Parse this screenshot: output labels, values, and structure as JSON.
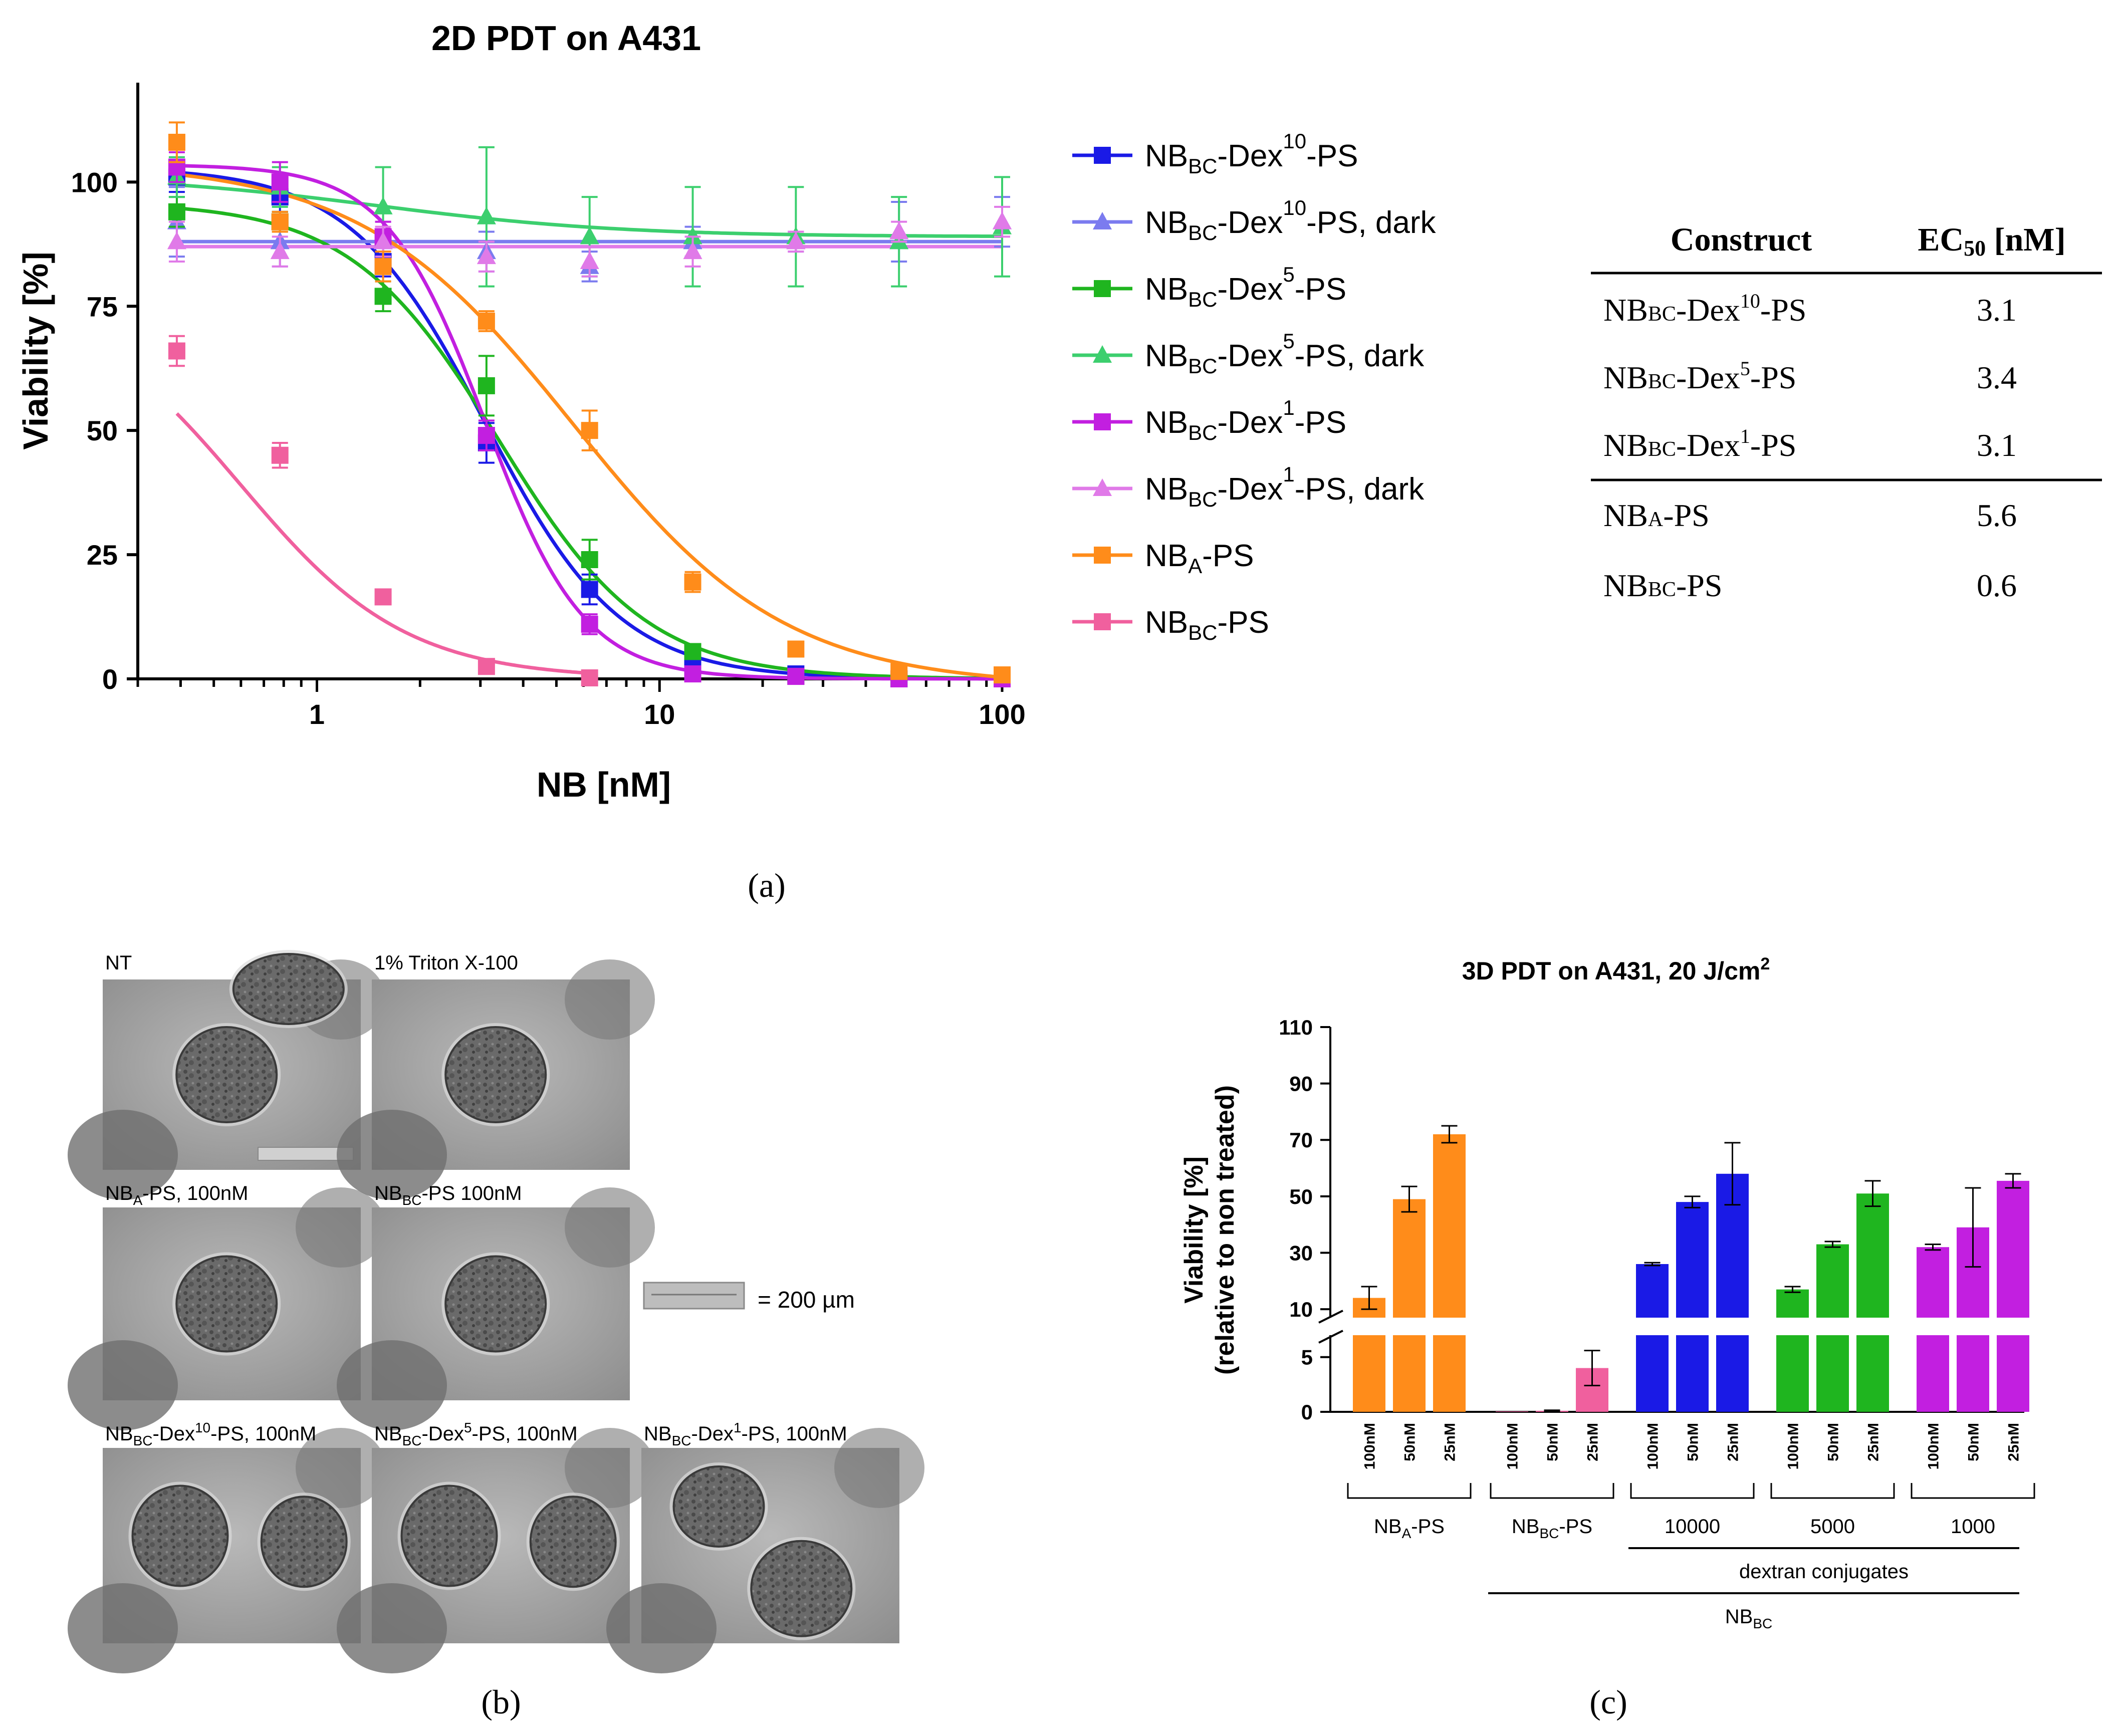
{
  "colors": {
    "blue": "#1a1ae6",
    "lavender": "#7b7bef",
    "green": "#1fb51f",
    "mint": "#3ccf6e",
    "purple": "#c21fe0",
    "violet": "#e07ae8",
    "orange": "#ff8c1a",
    "pink": "#f0609e",
    "axis": "#000000"
  },
  "panel_labels": {
    "a": "(a)",
    "b": "(b)",
    "c": "(c)"
  },
  "ec50_table": {
    "headers": [
      "Construct",
      "EC50 [nM]"
    ],
    "rows": [
      {
        "name": "NBBC-Dex10-PS",
        "base": "NB",
        "sub": "BC",
        "mid": "-Dex",
        "sup": "10",
        "tail": "-PS",
        "value": "3.1"
      },
      {
        "name": "NBBC-Dex5-PS",
        "base": "NB",
        "sub": "BC",
        "mid": "-Dex",
        "sup": "5",
        "tail": "-PS",
        "value": "3.4"
      },
      {
        "name": "NBBC-Dex1-PS",
        "base": "NB",
        "sub": "BC",
        "mid": "-Dex",
        "sup": "1",
        "tail": "-PS",
        "value": "3.1"
      },
      {
        "name": "NBA-PS",
        "base": "NB",
        "sub": "A",
        "mid": "-PS",
        "sup": "",
        "tail": "",
        "value": "5.6"
      },
      {
        "name": "NBBC-PS",
        "base": "NB",
        "sub": "BC",
        "mid": "-PS",
        "sup": "",
        "tail": "",
        "value": "0.6"
      }
    ]
  },
  "microscopy": {
    "scale_text": "= 200 µm",
    "images": [
      {
        "label": "NT"
      },
      {
        "label": "1% Triton X-100"
      },
      {
        "label": "NBA-PS, 100nM",
        "base": "NB",
        "sub": "A",
        "tail": "-PS, 100nM"
      },
      {
        "label": "NBBC-PS 100nM",
        "base": "NB",
        "sub": "BC",
        "tail": "-PS 100nM"
      },
      {
        "label": "NBBC-Dex10-PS, 100nM",
        "base": "NB",
        "sub": "BC",
        "mid": "-Dex",
        "sup": "10",
        "tail": "-PS, 100nM"
      },
      {
        "label": "NBBC-Dex5-PS, 100nM",
        "base": "NB",
        "sub": "BC",
        "mid": "-Dex",
        "sup": "5",
        "tail": "-PS, 100nM"
      },
      {
        "label": "NBBC-Dex1-PS, 100nM",
        "base": "NB",
        "sub": "BC",
        "mid": "-Dex",
        "sup": "1",
        "tail": "-PS, 100nM"
      }
    ]
  },
  "chart_data": [
    {
      "id": "a",
      "type": "scatter",
      "title": "2D PDT on A431",
      "xlabel": "NB [nM]",
      "ylabel": "Viability [%]",
      "xscale": "log",
      "xlim": [
        0.3,
        100
      ],
      "ylim": [
        0,
        120
      ],
      "xticks": [
        "1",
        "10",
        "100"
      ],
      "yticks": [
        "0",
        "25",
        "50",
        "75",
        "100"
      ],
      "legend_position": "right",
      "x": [
        0.39,
        0.78,
        1.56,
        3.125,
        6.25,
        12.5,
        25,
        50,
        100
      ],
      "series": [
        {
          "key": "dex10",
          "base": "NB",
          "sub": "BC",
          "mid": "-Dex",
          "sup": "10",
          "tail": "-PS",
          "marker": "square",
          "color": "#1a1ae6",
          "values": [
            101,
            97,
            84,
            47.5,
            18,
            2.5,
            1,
            0,
            0
          ],
          "errors": [
            3,
            3,
            3,
            4,
            3,
            1,
            0.5,
            0.3,
            0.3
          ],
          "fit": {
            "top": 103,
            "bottom": 0,
            "ec50": 3.1,
            "hill": 2.2
          }
        },
        {
          "key": "dex10dark",
          "base": "NB",
          "sub": "BC",
          "mid": "-Dex",
          "sup": "10",
          "tail": "-PS, dark",
          "marker": "triangle",
          "color": "#7b7bef",
          "values": [
            92,
            88,
            88,
            86,
            83,
            88,
            88,
            90,
            92
          ],
          "errors": [
            7,
            5,
            4,
            4,
            3,
            3,
            2,
            6,
            5
          ],
          "fit": {
            "flat": 88
          }
        },
        {
          "key": "dex5",
          "base": "NB",
          "sub": "BC",
          "mid": "-Dex",
          "sup": "5",
          "tail": "-PS",
          "marker": "square",
          "color": "#1fb51f",
          "values": [
            94,
            92,
            77,
            59,
            24,
            5.5,
            0.5,
            0,
            0
          ],
          "errors": [
            3,
            2,
            3,
            6,
            4,
            1,
            0.5,
            0.3,
            0.3
          ],
          "fit": {
            "top": 96,
            "bottom": 0,
            "ec50": 3.4,
            "hill": 2.0
          }
        },
        {
          "key": "dex5dark",
          "base": "NB",
          "sub": "BC",
          "mid": "-Dex",
          "sup": "5",
          "tail": "-PS, dark",
          "marker": "triangle",
          "color": "#3ccf6e",
          "values": [
            101,
            99,
            95,
            93,
            89,
            89,
            89,
            88,
            91
          ],
          "errors": [
            4,
            4,
            8,
            14,
            8,
            10,
            10,
            9,
            10
          ],
          "fit": {
            "top": 101.5,
            "bottom": 89,
            "ec50": 1.5,
            "hill": 1.2
          }
        },
        {
          "key": "dex1",
          "base": "NB",
          "sub": "BC",
          "mid": "-Dex",
          "sup": "1",
          "tail": "-PS",
          "marker": "square",
          "color": "#c21fe0",
          "values": [
            103,
            100,
            89,
            49,
            11,
            1,
            0.5,
            0,
            0
          ],
          "errors": [
            3,
            4,
            3,
            3,
            2,
            1,
            0.5,
            0.3,
            0.3
          ],
          "fit": {
            "top": 103.5,
            "bottom": 0,
            "ec50": 3.1,
            "hill": 3.0
          }
        },
        {
          "key": "dex1dark",
          "base": "NB",
          "sub": "BC",
          "mid": "-Dex",
          "sup": "1",
          "tail": "-PS, dark",
          "marker": "triangle",
          "color": "#e07ae8",
          "values": [
            88,
            86,
            88,
            85,
            84,
            86,
            88,
            90,
            92
          ],
          "errors": [
            4,
            3,
            3,
            3,
            3,
            3,
            2,
            2,
            3
          ],
          "fit": {
            "flat": 87
          }
        },
        {
          "key": "nba",
          "base": "NB",
          "sub": "A",
          "mid": "-PS",
          "sup": "",
          "tail": "",
          "marker": "square",
          "color": "#ff8c1a",
          "values": [
            108,
            92,
            83,
            72,
            50,
            19.5,
            6,
            1.5,
            0.8
          ],
          "errors": [
            4,
            2,
            3,
            2,
            4,
            2,
            1,
            0.5,
            0.4
          ],
          "fit": {
            "top": 104,
            "bottom": -1.5,
            "ec50": 5.6,
            "hill": 1.4
          }
        },
        {
          "key": "nbbc",
          "base": "NB",
          "sub": "BC",
          "mid": "-PS",
          "sup": "",
          "tail": "",
          "marker": "square",
          "color": "#f0609e",
          "values": [
            66,
            45,
            16.5,
            2.5,
            0.2
          ],
          "errors": [
            3,
            2.5,
            1,
            0.5,
            0.2
          ],
          "fit": {
            "top": 78,
            "bottom": 0,
            "ec50": 0.6,
            "hill": 1.8
          }
        }
      ]
    },
    {
      "id": "c",
      "type": "bar",
      "title": "3D PDT on A431, 20 J/cm2",
      "title_base": "3D PDT on A431, 20 J/cm",
      "title_sup": "2",
      "ylabel_lines": [
        "Viability [%]",
        "(relative to non treated)"
      ],
      "yticks_upper": [
        "10",
        "30",
        "50",
        "70",
        "90",
        "110"
      ],
      "yticks_lower": [
        "0",
        "5"
      ],
      "ylim_lower": [
        0,
        7
      ],
      "ylim_upper": [
        7,
        110
      ],
      "categories": [
        "100nM",
        "50nM",
        "25nM"
      ],
      "groups": [
        {
          "label": "NBA-PS",
          "base": "NB",
          "sub": "A",
          "tail": "-PS",
          "color": "#ff8c1a",
          "values": [
            14,
            49,
            72
          ],
          "errors": [
            4,
            4.5,
            3
          ]
        },
        {
          "label": "NBBC-PS",
          "base": "NB",
          "sub": "BC",
          "tail": "-PS",
          "color": "#f0609e",
          "values": [
            0.05,
            0.1,
            4
          ],
          "errors": [
            0,
            0.05,
            1.6
          ]
        },
        {
          "label": "10000",
          "color": "#1a1ae6",
          "values": [
            26,
            48,
            58
          ],
          "errors": [
            0.5,
            2,
            11
          ]
        },
        {
          "label": "5000",
          "color": "#1fb51f",
          "values": [
            17,
            33,
            51
          ],
          "errors": [
            1,
            1,
            4.5
          ]
        },
        {
          "label": "1000",
          "color": "#c21fe0",
          "values": [
            32,
            39,
            55.5
          ],
          "errors": [
            1,
            14,
            2.5
          ]
        }
      ],
      "bracket_labels": {
        "dextran": "dextran conjugates",
        "nbbc": "NBBC",
        "nbbc_base": "NB",
        "nbbc_sub": "BC"
      }
    }
  ]
}
